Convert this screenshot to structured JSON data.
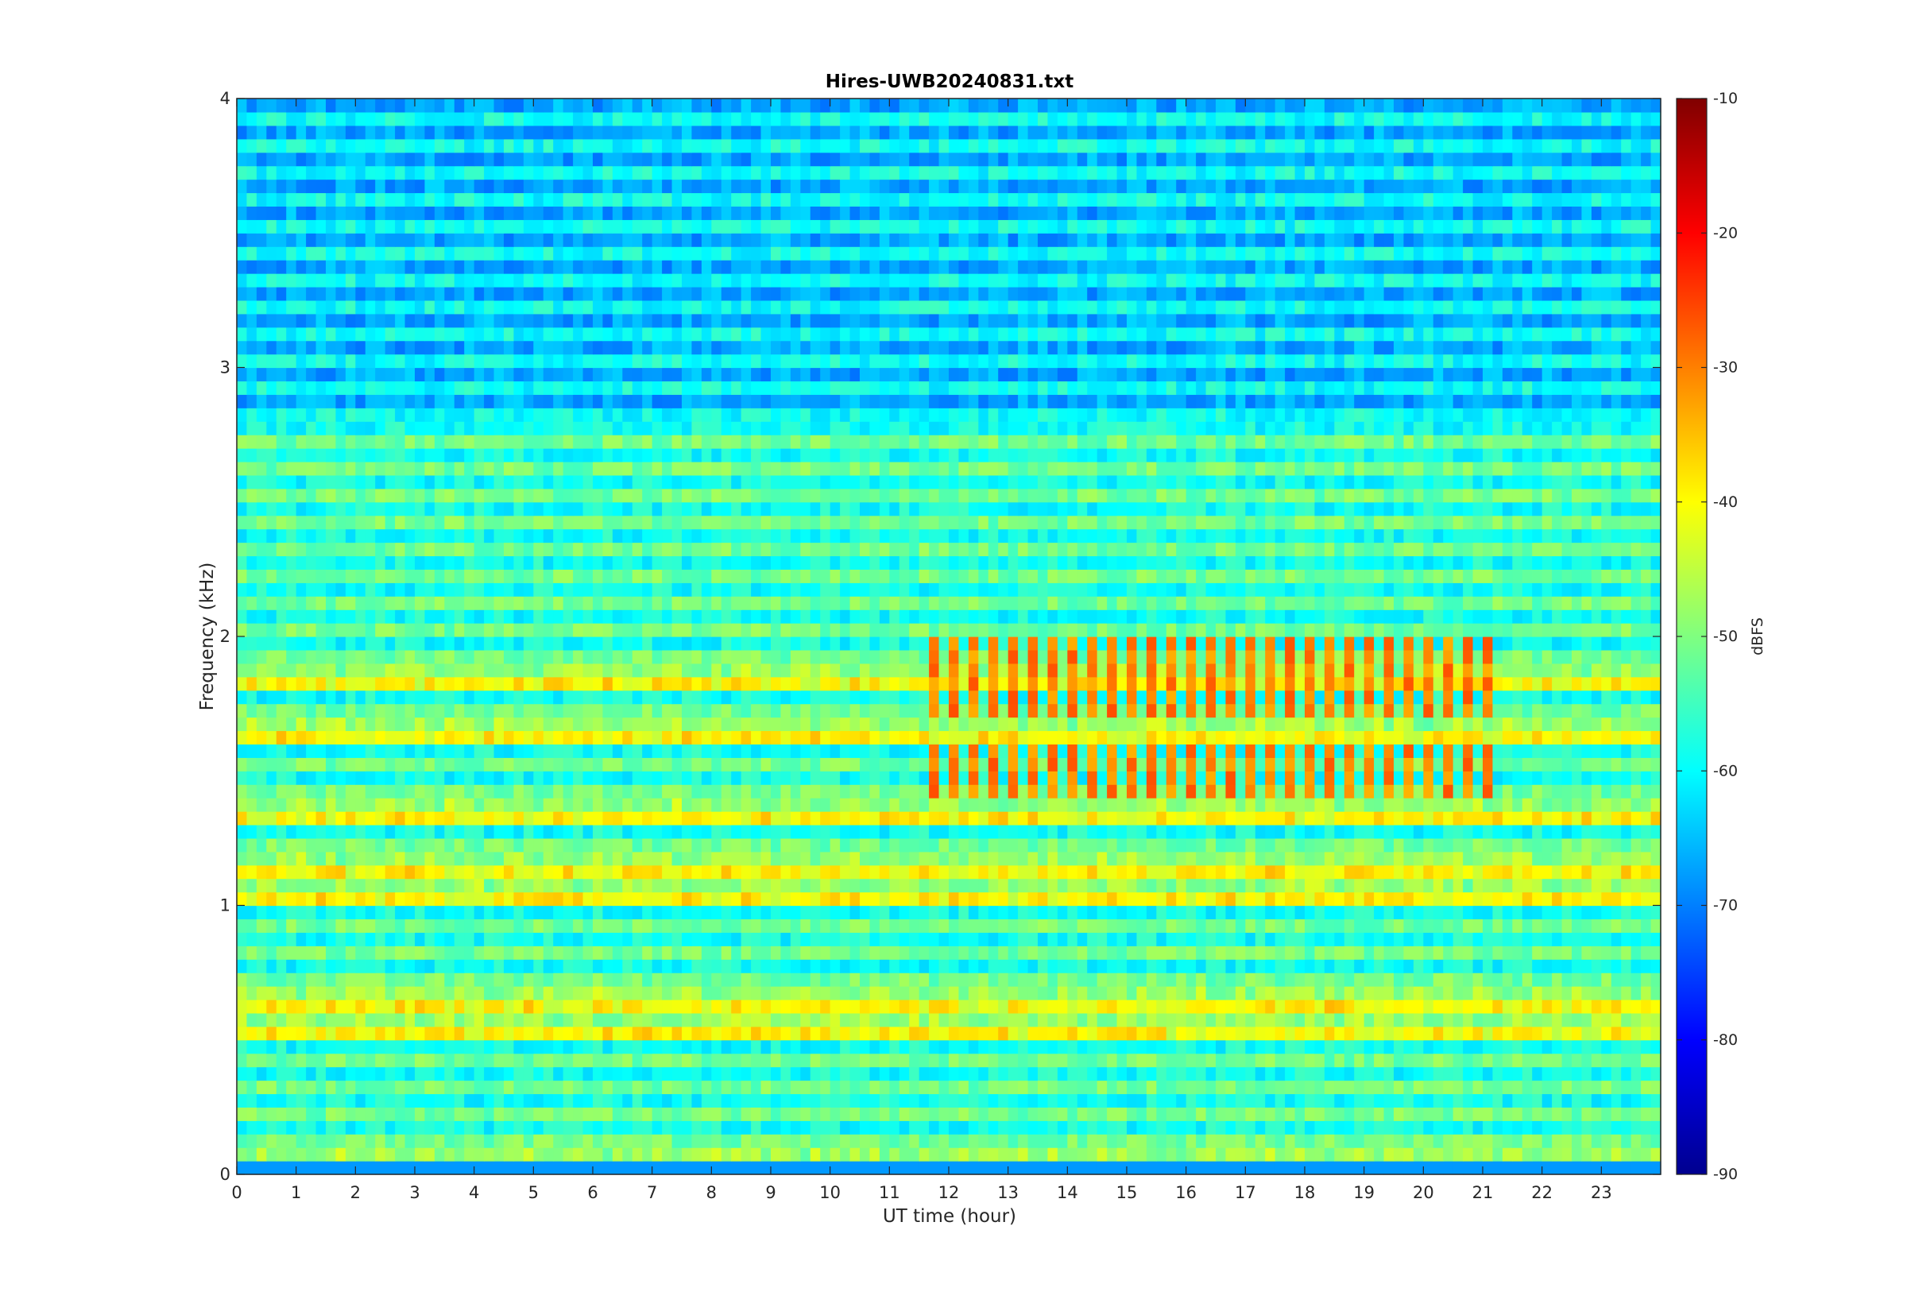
{
  "chart_data": {
    "type": "heatmap",
    "title": "Hires-UWB20240831.txt",
    "xlabel": "UT time (hour)",
    "ylabel": "Frequency (kHz)",
    "xlim": [
      0,
      24
    ],
    "ylim": [
      0,
      4
    ],
    "x_ticks": [
      "0",
      "1",
      "2",
      "3",
      "4",
      "5",
      "6",
      "7",
      "8",
      "9",
      "10",
      "11",
      "12",
      "13",
      "14",
      "15",
      "16",
      "17",
      "18",
      "19",
      "20",
      "21",
      "22",
      "23"
    ],
    "y_ticks": [
      "0",
      "1",
      "2",
      "3",
      "4"
    ],
    "colormap": "jet",
    "colorbar": {
      "label": "dBFS",
      "range": [
        -90,
        -10
      ],
      "ticks": [
        "-10",
        "-20",
        "-30",
        "-40",
        "-50",
        "-60",
        "-70",
        "-80",
        "-90"
      ]
    },
    "summary_levels_dBFS": {
      "background_above_2.8kHz": -63,
      "background_0.8_to_2.8kHz": -55,
      "strong_bands_kHz": [
        0.05,
        0.55,
        0.65,
        1.05,
        1.15,
        1.35,
        1.65,
        1.85
      ],
      "strong_band_level": -42,
      "tone_comb_interval_hours": [
        11.5,
        21.3
      ],
      "tone_comb_frequencies_kHz": [
        1.45,
        1.55,
        1.75,
        1.85,
        1.95
      ],
      "tone_comb_peak_level": -30
    }
  }
}
